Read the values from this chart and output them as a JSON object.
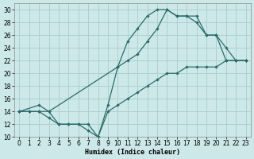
{
  "xlabel": "Humidex (Indice chaleur)",
  "background_color": "#cce8e8",
  "grid_color": "#aacccc",
  "line_color": "#2d6b6b",
  "xlim": [
    -0.5,
    23.5
  ],
  "ylim": [
    10,
    31
  ],
  "xticks": [
    0,
    1,
    2,
    3,
    4,
    5,
    6,
    7,
    8,
    9,
    10,
    11,
    12,
    13,
    14,
    15,
    16,
    17,
    18,
    19,
    20,
    21,
    22,
    23
  ],
  "yticks": [
    10,
    12,
    14,
    16,
    18,
    20,
    22,
    24,
    26,
    28,
    30
  ],
  "line1_x": [
    0,
    1,
    2,
    3,
    4,
    5,
    6,
    7,
    8,
    9,
    10,
    11,
    12,
    13,
    14,
    15,
    16,
    17,
    18,
    19,
    20,
    21,
    22,
    23
  ],
  "line1_y": [
    14,
    14,
    14,
    13,
    12,
    12,
    12,
    11,
    10,
    15,
    21,
    25,
    27,
    29,
    30,
    30,
    29,
    29,
    29,
    26,
    26,
    22,
    22,
    22
  ],
  "line2_x": [
    0,
    2,
    3,
    10,
    11,
    12,
    13,
    14,
    15,
    16,
    17,
    18,
    19,
    20,
    21,
    22,
    23
  ],
  "line2_y": [
    14,
    15,
    14,
    21,
    22,
    23,
    25,
    27,
    30,
    29,
    29,
    28,
    26,
    26,
    24,
    22,
    22
  ],
  "line3_x": [
    0,
    1,
    2,
    3,
    4,
    5,
    6,
    7,
    8,
    9,
    10,
    11,
    12,
    13,
    14,
    15,
    16,
    17,
    18,
    19,
    20,
    21,
    22,
    23
  ],
  "line3_y": [
    14,
    14,
    14,
    14,
    12,
    12,
    12,
    12,
    10,
    14,
    15,
    16,
    17,
    18,
    19,
    20,
    20,
    21,
    21,
    21,
    21,
    22,
    22,
    22
  ]
}
